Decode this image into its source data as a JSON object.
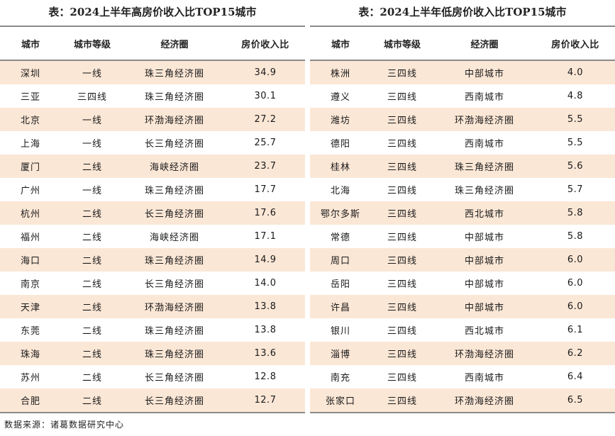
{
  "left_table": {
    "title": "表：2024上半年高房价收入比TOP15城市",
    "headers": [
      "城市",
      "城市等级",
      "经济圈",
      "房价收入比"
    ],
    "rows": [
      [
        "深圳",
        "一线",
        "珠三角经济圈",
        "34.9"
      ],
      [
        "三亚",
        "三四线",
        "珠三角经济圈",
        "30.1"
      ],
      [
        "北京",
        "一线",
        "环渤海经济圈",
        "27.2"
      ],
      [
        "上海",
        "一线",
        "长三角经济圈",
        "25.7"
      ],
      [
        "厦门",
        "二线",
        "海峡经济圈",
        "23.7"
      ],
      [
        "广州",
        "一线",
        "珠三角经济圈",
        "17.7"
      ],
      [
        "杭州",
        "二线",
        "长三角经济圈",
        "17.6"
      ],
      [
        "福州",
        "二线",
        "海峡经济圈",
        "17.1"
      ],
      [
        "海口",
        "二线",
        "珠三角经济圈",
        "14.9"
      ],
      [
        "南京",
        "二线",
        "长三角经济圈",
        "14.0"
      ],
      [
        "天津",
        "二线",
        "环渤海经济圈",
        "13.8"
      ],
      [
        "东莞",
        "二线",
        "珠三角经济圈",
        "13.8"
      ],
      [
        "珠海",
        "二线",
        "珠三角经济圈",
        "13.6"
      ],
      [
        "苏州",
        "二线",
        "长三角经济圈",
        "12.8"
      ],
      [
        "合肥",
        "二线",
        "长三角经济圈",
        "12.7"
      ]
    ]
  },
  "right_table": {
    "title": "表：2024上半年低房价收入比TOP15城市",
    "headers": [
      "城市",
      "城市等级",
      "经济圈",
      "房价收入比"
    ],
    "rows": [
      [
        "株洲",
        "三四线",
        "中部城市",
        "4.0"
      ],
      [
        "遵义",
        "三四线",
        "西南城市",
        "4.8"
      ],
      [
        "潍坊",
        "三四线",
        "环渤海经济圈",
        "5.5"
      ],
      [
        "德阳",
        "三四线",
        "西南城市",
        "5.5"
      ],
      [
        "桂林",
        "三四线",
        "珠三角经济圈",
        "5.6"
      ],
      [
        "北海",
        "三四线",
        "珠三角经济圈",
        "5.7"
      ],
      [
        "鄂尔多斯",
        "三四线",
        "西北城市",
        "5.8"
      ],
      [
        "常德",
        "三四线",
        "中部城市",
        "5.8"
      ],
      [
        "周口",
        "三四线",
        "中部城市",
        "6.0"
      ],
      [
        "岳阳",
        "三四线",
        "中部城市",
        "6.0"
      ],
      [
        "许昌",
        "三四线",
        "中部城市",
        "6.0"
      ],
      [
        "银川",
        "三四线",
        "西北城市",
        "6.1"
      ],
      [
        "淄博",
        "三四线",
        "环渤海经济圈",
        "6.2"
      ],
      [
        "南充",
        "三四线",
        "西南城市",
        "6.4"
      ],
      [
        "张家口",
        "三四线",
        "环渤海经济圈",
        "6.5"
      ]
    ]
  },
  "footer": {
    "source": "数据来源：诸葛数据研究中心"
  },
  "colors": {
    "shade": "#fbe7d6",
    "rule": "#8a8a8a"
  }
}
